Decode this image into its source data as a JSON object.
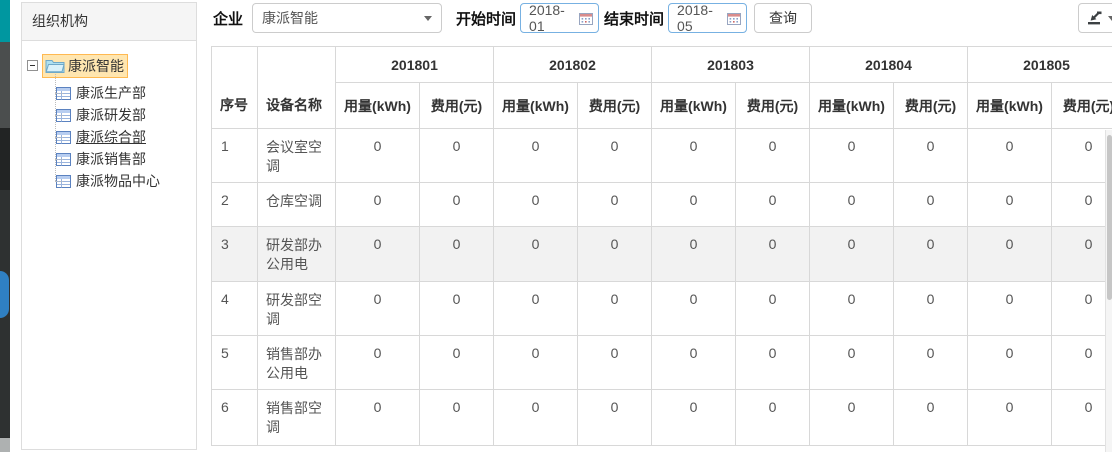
{
  "sidebar": {
    "title": "组织机构",
    "tree": {
      "root_label": "康派智能",
      "children": [
        {
          "label": "康派生产部",
          "selected": false
        },
        {
          "label": "康派研发部",
          "selected": false
        },
        {
          "label": "康派综合部",
          "selected": true
        },
        {
          "label": "康派销售部",
          "selected": false
        },
        {
          "label": "康派物品中心",
          "selected": false
        }
      ]
    }
  },
  "toolbar": {
    "enterprise_label": "企业",
    "enterprise_value": "康派智能",
    "start_time_label": "开始时间",
    "start_time_value": "2018-01",
    "end_time_label": "结束时间",
    "end_time_value": "2018-05",
    "query_button_label": "查询",
    "icons": {
      "export": "export-icon",
      "calendar": "calendar-icon",
      "caret": "chevron-down-icon"
    }
  },
  "table": {
    "index_header": "序号",
    "device_header": "设备名称",
    "months": [
      "201801",
      "201802",
      "201803",
      "201804",
      "201805"
    ],
    "usage_header": "用量(kWh)",
    "cost_header": "费用(元)",
    "rows": [
      {
        "index": "1",
        "device": "会议室空调",
        "highlighted": false,
        "values": [
          "0",
          "0",
          "0",
          "0",
          "0",
          "0",
          "0",
          "0",
          "0",
          "0"
        ]
      },
      {
        "index": "2",
        "device": "仓库空调",
        "highlighted": false,
        "values": [
          "0",
          "0",
          "0",
          "0",
          "0",
          "0",
          "0",
          "0",
          "0",
          "0"
        ]
      },
      {
        "index": "3",
        "device": "研发部办公用电",
        "highlighted": true,
        "values": [
          "0",
          "0",
          "0",
          "0",
          "0",
          "0",
          "0",
          "0",
          "0",
          "0"
        ]
      },
      {
        "index": "4",
        "device": "研发部空调",
        "highlighted": false,
        "values": [
          "0",
          "0",
          "0",
          "0",
          "0",
          "0",
          "0",
          "0",
          "0",
          "0"
        ]
      },
      {
        "index": "5",
        "device": "销售部办公用电",
        "highlighted": false,
        "values": [
          "0",
          "0",
          "0",
          "0",
          "0",
          "0",
          "0",
          "0",
          "0",
          "0"
        ]
      },
      {
        "index": "6",
        "device": "销售部空调",
        "highlighted": false,
        "values": [
          "0",
          "0",
          "0",
          "0",
          "0",
          "0",
          "0",
          "0",
          "0",
          "0"
        ]
      }
    ]
  },
  "colors": {
    "accent_teal": "#0097a0",
    "toggle_blue": "#2f80c3",
    "tree_selected_bg": "#ffe6b0",
    "tree_selected_border": "#ffb951",
    "row_highlight_bg": "#f2f2f2",
    "date_input_border": "#77b1e2",
    "table_border": "#d8d8d8"
  }
}
